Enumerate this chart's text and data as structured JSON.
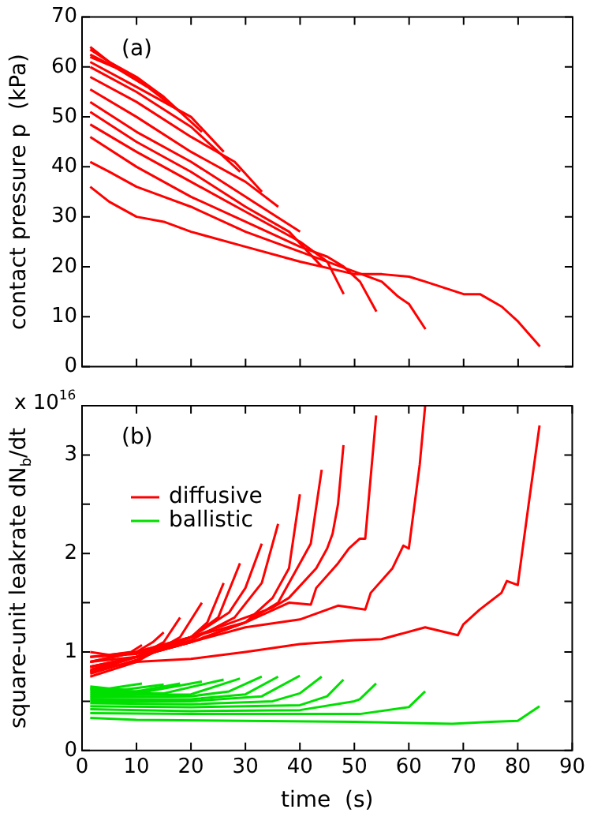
{
  "chart_data": [
    {
      "type": "line",
      "ylabel": "contact pressure p  (kPa)",
      "annotations": [
        "(a)"
      ],
      "xlim": [
        0,
        90
      ],
      "xticks": [
        0,
        10,
        20,
        30,
        40,
        50,
        60,
        70,
        80,
        90
      ],
      "ylim": [
        0,
        70
      ],
      "yticks": [
        0,
        10,
        20,
        30,
        40,
        50,
        60,
        70
      ],
      "tick_labels": "y",
      "grid": false,
      "series": [
        {
          "color": "#ff0000",
          "x": [
            1.5,
            5,
            8,
            11
          ],
          "values": [
            64,
            61,
            59,
            57
          ]
        },
        {
          "color": "#ff0000",
          "x": [
            1.5,
            5,
            10,
            15
          ],
          "values": [
            63.5,
            61,
            58,
            54
          ]
        },
        {
          "color": "#ff0000",
          "x": [
            1.5,
            6,
            12,
            18
          ],
          "values": [
            62.5,
            60,
            56,
            51
          ]
        },
        {
          "color": "#ff0000",
          "x": [
            1.5,
            8,
            15,
            22
          ],
          "values": [
            62,
            59,
            54,
            47
          ]
        },
        {
          "color": "#ff0000",
          "x": [
            1.5,
            10,
            20,
            26
          ],
          "values": [
            61,
            56,
            50,
            43
          ]
        },
        {
          "color": "#ff0000",
          "x": [
            1.5,
            10,
            20,
            29
          ],
          "values": [
            60,
            55,
            48,
            39
          ]
        },
        {
          "color": "#ff0000",
          "x": [
            1.5,
            10,
            20,
            28,
            33
          ],
          "values": [
            58,
            53,
            46,
            41,
            35
          ]
        },
        {
          "color": "#ff0000",
          "x": [
            1.5,
            10,
            20,
            30,
            36
          ],
          "values": [
            55.5,
            50,
            43,
            37,
            32
          ]
        },
        {
          "color": "#ff0000",
          "x": [
            1.5,
            10,
            20,
            30,
            40
          ],
          "values": [
            53,
            47,
            41,
            34,
            27
          ]
        },
        {
          "color": "#ff0000",
          "x": [
            1.5,
            10,
            20,
            30,
            38,
            44
          ],
          "values": [
            51,
            45,
            39,
            32,
            27,
            20
          ]
        },
        {
          "color": "#ff0000",
          "x": [
            1.5,
            10,
            20,
            30,
            40,
            45,
            48
          ],
          "values": [
            48.5,
            43,
            37,
            31,
            25,
            21,
            14.5
          ]
        },
        {
          "color": "#ff0000",
          "x": [
            1.5,
            10,
            20,
            30,
            40,
            45,
            48,
            51,
            54
          ],
          "values": [
            46,
            40,
            34,
            29,
            24,
            22,
            20,
            17,
            11
          ]
        },
        {
          "color": "#ff0000",
          "x": [
            1.5,
            5,
            10,
            20,
            30,
            40,
            45,
            50,
            55,
            58,
            60,
            63
          ],
          "values": [
            41,
            39,
            36,
            32,
            27,
            23,
            21,
            19,
            17,
            14,
            12.5,
            7.5
          ]
        },
        {
          "color": "#ff0000",
          "x": [
            1.5,
            5,
            10,
            15,
            20,
            30,
            40,
            50,
            55,
            60,
            63,
            70,
            73,
            77,
            80,
            84
          ],
          "values": [
            36,
            33,
            30,
            29,
            27,
            24,
            21,
            18.5,
            18.5,
            18,
            17,
            14.5,
            14.5,
            12,
            9,
            4
          ]
        }
      ]
    },
    {
      "type": "line",
      "xlabel": "time  (s)",
      "ylabel": "square-unit leakrate dN$_{b}$/dt",
      "annotations": [
        "(b)",
        "x 10$^{16}$"
      ],
      "legend": "top left",
      "xlim": [
        0,
        90
      ],
      "xticks": [
        0,
        10,
        20,
        30,
        40,
        50,
        60,
        70,
        80,
        90
      ],
      "ylim": [
        0,
        3.5
      ],
      "yticks": [
        0,
        {
          "value": 0.5,
          "label": null
        },
        1,
        {
          "value": 1.5,
          "label": null
        },
        2,
        {
          "value": 2.5,
          "label": null
        },
        3
      ],
      "grid": false,
      "series": [
        {
          "name": "diffusive",
          "color": "#ff0000",
          "x": [
            1.5,
            5,
            9,
            11
          ],
          "values": [
            1.0,
            0.97,
            1.0,
            1.07
          ]
        },
        {
          "color": "#ff0000",
          "x": [
            1.5,
            10,
            13,
            15
          ],
          "values": [
            0.9,
            1.0,
            1.1,
            1.2
          ]
        },
        {
          "color": "#ff0000",
          "x": [
            1.5,
            10,
            15,
            18
          ],
          "values": [
            0.82,
            0.95,
            1.1,
            1.35
          ]
        },
        {
          "color": "#ff0000",
          "x": [
            1.5,
            10,
            18,
            22
          ],
          "values": [
            0.75,
            0.9,
            1.15,
            1.5
          ]
        },
        {
          "color": "#ff0000",
          "x": [
            1.5,
            10,
            20,
            23,
            26
          ],
          "values": [
            0.85,
            0.95,
            1.15,
            1.3,
            1.7
          ]
        },
        {
          "color": "#ff0000",
          "x": [
            1.5,
            10,
            20,
            25,
            29
          ],
          "values": [
            0.78,
            0.92,
            1.15,
            1.35,
            1.9
          ]
        },
        {
          "color": "#ff0000",
          "x": [
            1.5,
            10,
            20,
            27,
            30,
            33
          ],
          "values": [
            0.95,
            0.98,
            1.15,
            1.4,
            1.65,
            2.1
          ]
        },
        {
          "color": "#ff0000",
          "x": [
            1.5,
            10,
            20,
            28,
            33,
            36
          ],
          "values": [
            0.9,
            0.95,
            1.12,
            1.35,
            1.7,
            2.3
          ]
        },
        {
          "color": "#ff0000",
          "x": [
            1.5,
            10,
            20,
            30,
            35,
            38,
            40
          ],
          "values": [
            0.85,
            0.95,
            1.1,
            1.3,
            1.55,
            1.85,
            2.6
          ]
        },
        {
          "color": "#ff0000",
          "x": [
            1.5,
            10,
            20,
            30,
            36,
            40,
            42,
            44
          ],
          "values": [
            0.8,
            0.95,
            1.1,
            1.3,
            1.5,
            1.9,
            2.1,
            2.85
          ]
        },
        {
          "color": "#ff0000",
          "x": [
            1.5,
            10,
            20,
            30,
            35,
            38,
            43,
            45,
            46,
            47,
            48
          ],
          "values": [
            0.95,
            1.0,
            1.15,
            1.35,
            1.45,
            1.55,
            1.85,
            2.05,
            2.2,
            2.5,
            3.1
          ]
        },
        {
          "color": "#ff0000",
          "x": [
            1.5,
            10,
            20,
            30,
            38,
            42,
            43,
            47,
            49,
            51,
            52,
            54
          ],
          "values": [
            0.9,
            1.0,
            1.15,
            1.3,
            1.5,
            1.48,
            1.65,
            1.9,
            2.05,
            2.15,
            2.15,
            3.4
          ]
        },
        {
          "color": "#ff0000",
          "x": [
            1.5,
            5,
            10,
            20,
            30,
            40,
            47,
            52,
            53,
            57,
            59,
            60,
            62,
            63
          ],
          "values": [
            0.85,
            0.88,
            0.95,
            1.1,
            1.25,
            1.33,
            1.47,
            1.43,
            1.6,
            1.85,
            2.08,
            2.05,
            2.9,
            3.5
          ]
        },
        {
          "color": "#ff0000",
          "x": [
            1.5,
            5,
            10,
            20,
            30,
            40,
            50,
            55,
            63,
            69,
            70,
            73,
            77,
            78,
            80,
            82,
            84
          ],
          "values": [
            0.8,
            0.85,
            0.9,
            0.93,
            1.0,
            1.08,
            1.12,
            1.13,
            1.25,
            1.17,
            1.28,
            1.43,
            1.6,
            1.72,
            1.68,
            2.5,
            3.3
          ]
        },
        {
          "name": "ballistic",
          "color": "#00e000",
          "x": [
            1.5,
            5,
            11
          ],
          "values": [
            0.65,
            0.63,
            0.68
          ]
        },
        {
          "color": "#00e000",
          "x": [
            1.5,
            8,
            15
          ],
          "values": [
            0.63,
            0.62,
            0.67
          ]
        },
        {
          "color": "#00e000",
          "x": [
            1.5,
            10,
            18
          ],
          "values": [
            0.62,
            0.6,
            0.68
          ]
        },
        {
          "color": "#00e000",
          "x": [
            1.5,
            12,
            22
          ],
          "values": [
            0.6,
            0.6,
            0.7
          ]
        },
        {
          "color": "#00e000",
          "x": [
            1.5,
            15,
            26
          ],
          "values": [
            0.58,
            0.58,
            0.72
          ]
        },
        {
          "color": "#00e000",
          "x": [
            1.5,
            20,
            29
          ],
          "values": [
            0.56,
            0.57,
            0.73
          ]
        },
        {
          "color": "#00e000",
          "x": [
            1.5,
            20,
            27,
            33
          ],
          "values": [
            0.54,
            0.55,
            0.6,
            0.75
          ]
        },
        {
          "color": "#00e000",
          "x": [
            1.5,
            20,
            30,
            36
          ],
          "values": [
            0.52,
            0.52,
            0.57,
            0.75
          ]
        },
        {
          "color": "#00e000",
          "x": [
            1.5,
            20,
            33,
            40
          ],
          "values": [
            0.5,
            0.5,
            0.55,
            0.76
          ]
        },
        {
          "color": "#00e000",
          "x": [
            1.5,
            20,
            35,
            40,
            44
          ],
          "values": [
            0.48,
            0.47,
            0.5,
            0.58,
            0.75
          ]
        },
        {
          "color": "#00e000",
          "x": [
            1.5,
            20,
            40,
            45,
            48
          ],
          "values": [
            0.45,
            0.44,
            0.46,
            0.55,
            0.72
          ]
        },
        {
          "color": "#00e000",
          "x": [
            1.5,
            20,
            40,
            50,
            51,
            54
          ],
          "values": [
            0.42,
            0.4,
            0.41,
            0.5,
            0.52,
            0.68
          ]
        },
        {
          "color": "#00e000",
          "x": [
            1.5,
            20,
            40,
            51,
            60,
            63
          ],
          "values": [
            0.38,
            0.37,
            0.37,
            0.37,
            0.44,
            0.6
          ]
        },
        {
          "color": "#00e000",
          "x": [
            1.5,
            10,
            30,
            50,
            68,
            75,
            80,
            84
          ],
          "values": [
            0.33,
            0.31,
            0.3,
            0.29,
            0.27,
            0.29,
            0.3,
            0.45
          ]
        }
      ]
    }
  ]
}
